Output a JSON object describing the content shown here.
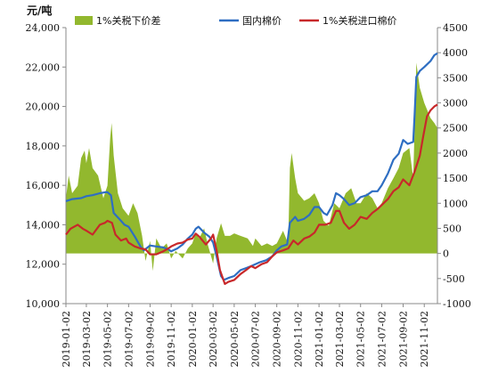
{
  "chart_data": {
    "type": "line",
    "unit_label": "元/吨",
    "legend": [
      {
        "name": "1%关税下价差",
        "color": "#92B82E",
        "kind": "area"
      },
      {
        "name": "国内棉价",
        "color": "#2E6EC2",
        "kind": "line"
      },
      {
        "name": "1%关税进口棉价",
        "color": "#C8282A",
        "kind": "line"
      }
    ],
    "left_axis": {
      "ylim": [
        10000,
        24000
      ],
      "ticks": [
        "10,000",
        "12,000",
        "14,000",
        "16,000",
        "18,000",
        "20,000",
        "22,000",
        "24,000"
      ]
    },
    "right_axis": {
      "ylim": [
        -1000,
        4500
      ],
      "ticks": [
        "-1000",
        "-500",
        "0",
        "500",
        "1000",
        "1500",
        "2000",
        "2500",
        "3000",
        "3500",
        "4000",
        "4500"
      ]
    },
    "x_ticks": [
      "2019-01-02",
      "2019-03-02",
      "2019-05-02",
      "2019-07-02",
      "2019-09-02",
      "2019-11-02",
      "2020-01-02",
      "2020-03-02",
      "2020-05-02",
      "2020-07-02",
      "2020-09-02",
      "2020-11-02",
      "2021-01-02",
      "2021-03-02",
      "2021-05-02",
      "2021-07-02",
      "2021-09-02",
      "2021-11-02"
    ],
    "x_range": [
      "2019-01-02",
      "2021-12-10"
    ],
    "series": [
      {
        "name": "国内棉价",
        "axis": "left",
        "points": [
          [
            "2019-01-02",
            15200
          ],
          [
            "2019-01-20",
            15300
          ],
          [
            "2019-02-15",
            15350
          ],
          [
            "2019-03-02",
            15450
          ],
          [
            "2019-03-20",
            15500
          ],
          [
            "2019-04-10",
            15600
          ],
          [
            "2019-04-25",
            15650
          ],
          [
            "2019-05-02",
            15650
          ],
          [
            "2019-05-12",
            15500
          ],
          [
            "2019-05-20",
            14600
          ],
          [
            "2019-06-05",
            14300
          ],
          [
            "2019-06-20",
            14000
          ],
          [
            "2019-07-02",
            13900
          ],
          [
            "2019-07-20",
            13400
          ],
          [
            "2019-08-05",
            12900
          ],
          [
            "2019-08-15",
            12700
          ],
          [
            "2019-09-02",
            12950
          ],
          [
            "2019-09-20",
            12900
          ],
          [
            "2019-10-10",
            12850
          ],
          [
            "2019-10-25",
            12750
          ],
          [
            "2019-11-02",
            12650
          ],
          [
            "2019-11-20",
            12800
          ],
          [
            "2019-12-05",
            13000
          ],
          [
            "2019-12-20",
            13300
          ],
          [
            "2020-01-02",
            13500
          ],
          [
            "2020-01-12",
            13800
          ],
          [
            "2020-01-20",
            13900
          ],
          [
            "2020-02-05",
            13600
          ],
          [
            "2020-02-20",
            13400
          ],
          [
            "2020-03-02",
            13100
          ],
          [
            "2020-03-12",
            12400
          ],
          [
            "2020-03-25",
            11400
          ],
          [
            "2020-04-02",
            11200
          ],
          [
            "2020-04-15",
            11300
          ],
          [
            "2020-05-02",
            11400
          ],
          [
            "2020-05-20",
            11700
          ],
          [
            "2020-06-05",
            11800
          ],
          [
            "2020-06-20",
            11900
          ],
          [
            "2020-07-02",
            12000
          ],
          [
            "2020-07-15",
            12100
          ],
          [
            "2020-08-02",
            12200
          ],
          [
            "2020-08-20",
            12400
          ],
          [
            "2020-09-02",
            12700
          ],
          [
            "2020-09-15",
            12900
          ],
          [
            "2020-10-02",
            13000
          ],
          [
            "2020-10-10",
            14100
          ],
          [
            "2020-10-25",
            14400
          ],
          [
            "2020-11-02",
            14200
          ],
          [
            "2020-11-20",
            14300
          ],
          [
            "2020-12-05",
            14500
          ],
          [
            "2020-12-20",
            14900
          ],
          [
            "2021-01-02",
            14900
          ],
          [
            "2021-01-15",
            14600
          ],
          [
            "2021-01-25",
            14500
          ],
          [
            "2021-02-10",
            15000
          ],
          [
            "2021-02-20",
            15600
          ],
          [
            "2021-03-02",
            15500
          ],
          [
            "2021-03-15",
            15300
          ],
          [
            "2021-03-30",
            15000
          ],
          [
            "2021-04-15",
            15100
          ],
          [
            "2021-05-02",
            15400
          ],
          [
            "2021-05-20",
            15500
          ],
          [
            "2021-06-05",
            15700
          ],
          [
            "2021-06-20",
            15700
          ],
          [
            "2021-07-02",
            16000
          ],
          [
            "2021-07-20",
            16600
          ],
          [
            "2021-08-05",
            17300
          ],
          [
            "2021-08-20",
            17600
          ],
          [
            "2021-09-02",
            18300
          ],
          [
            "2021-09-15",
            18100
          ],
          [
            "2021-10-01",
            18200
          ],
          [
            "2021-10-05",
            19600
          ],
          [
            "2021-10-10",
            21500
          ],
          [
            "2021-10-20",
            21800
          ],
          [
            "2021-11-02",
            22000
          ],
          [
            "2021-11-20",
            22300
          ],
          [
            "2021-12-01",
            22600
          ],
          [
            "2021-12-10",
            22700
          ]
        ]
      },
      {
        "name": "1%关税进口棉价",
        "axis": "left",
        "points": [
          [
            "2019-01-02",
            13500
          ],
          [
            "2019-01-15",
            13800
          ],
          [
            "2019-02-05",
            14000
          ],
          [
            "2019-02-20",
            13800
          ],
          [
            "2019-03-02",
            13700
          ],
          [
            "2019-03-20",
            13500
          ],
          [
            "2019-04-10",
            14000
          ],
          [
            "2019-04-25",
            14100
          ],
          [
            "2019-05-02",
            14200
          ],
          [
            "2019-05-15",
            14100
          ],
          [
            "2019-05-25",
            13500
          ],
          [
            "2019-06-10",
            13200
          ],
          [
            "2019-06-25",
            13300
          ],
          [
            "2019-07-02",
            13100
          ],
          [
            "2019-07-20",
            12900
          ],
          [
            "2019-08-05",
            12800
          ],
          [
            "2019-08-20",
            12750
          ],
          [
            "2019-09-02",
            12500
          ],
          [
            "2019-09-20",
            12500
          ],
          [
            "2019-10-10",
            12650
          ],
          [
            "2019-10-25",
            12800
          ],
          [
            "2019-11-02",
            12900
          ],
          [
            "2019-11-20",
            13050
          ],
          [
            "2019-12-05",
            13100
          ],
          [
            "2019-12-20",
            13250
          ],
          [
            "2020-01-02",
            13300
          ],
          [
            "2020-01-12",
            13550
          ],
          [
            "2020-01-22",
            13400
          ],
          [
            "2020-02-10",
            13000
          ],
          [
            "2020-02-25",
            13300
          ],
          [
            "2020-03-02",
            13500
          ],
          [
            "2020-03-12",
            12700
          ],
          [
            "2020-03-22",
            11700
          ],
          [
            "2020-04-05",
            11000
          ],
          [
            "2020-04-15",
            11100
          ],
          [
            "2020-05-02",
            11200
          ],
          [
            "2020-05-20",
            11500
          ],
          [
            "2020-06-05",
            11700
          ],
          [
            "2020-06-20",
            11900
          ],
          [
            "2020-07-02",
            11800
          ],
          [
            "2020-07-20",
            12000
          ],
          [
            "2020-08-05",
            12100
          ],
          [
            "2020-08-20",
            12400
          ],
          [
            "2020-09-02",
            12600
          ],
          [
            "2020-09-20",
            12700
          ],
          [
            "2020-10-05",
            12800
          ],
          [
            "2020-10-20",
            13200
          ],
          [
            "2020-11-02",
            13000
          ],
          [
            "2020-11-20",
            13300
          ],
          [
            "2020-12-05",
            13400
          ],
          [
            "2020-12-20",
            13600
          ],
          [
            "2021-01-02",
            14000
          ],
          [
            "2021-01-20",
            14000
          ],
          [
            "2021-02-05",
            14100
          ],
          [
            "2021-02-20",
            14700
          ],
          [
            "2021-03-02",
            14700
          ],
          [
            "2021-03-15",
            14100
          ],
          [
            "2021-03-30",
            13800
          ],
          [
            "2021-04-15",
            14000
          ],
          [
            "2021-05-02",
            14400
          ],
          [
            "2021-05-20",
            14300
          ],
          [
            "2021-06-05",
            14600
          ],
          [
            "2021-06-20",
            14800
          ],
          [
            "2021-07-02",
            15000
          ],
          [
            "2021-07-20",
            15300
          ],
          [
            "2021-08-05",
            15700
          ],
          [
            "2021-08-20",
            15900
          ],
          [
            "2021-09-02",
            16300
          ],
          [
            "2021-09-20",
            16000
          ],
          [
            "2021-10-05",
            16700
          ],
          [
            "2021-10-20",
            17500
          ],
          [
            "2021-10-30",
            18500
          ],
          [
            "2021-11-10",
            19500
          ],
          [
            "2021-11-20",
            19800
          ],
          [
            "2021-12-01",
            20000
          ],
          [
            "2021-12-10",
            20100
          ]
        ]
      },
      {
        "name": "1%关税下价差",
        "axis": "right",
        "points": [
          [
            "2019-01-02",
            1100
          ],
          [
            "2019-01-10",
            1550
          ],
          [
            "2019-01-20",
            1200
          ],
          [
            "2019-02-05",
            1350
          ],
          [
            "2019-02-15",
            1900
          ],
          [
            "2019-02-25",
            2050
          ],
          [
            "2019-03-02",
            1800
          ],
          [
            "2019-03-10",
            2100
          ],
          [
            "2019-03-20",
            1700
          ],
          [
            "2019-04-05",
            1550
          ],
          [
            "2019-04-20",
            1100
          ],
          [
            "2019-05-02",
            1350
          ],
          [
            "2019-05-10",
            2300
          ],
          [
            "2019-05-14",
            2600
          ],
          [
            "2019-05-20",
            1950
          ],
          [
            "2019-06-01",
            1200
          ],
          [
            "2019-06-15",
            900
          ],
          [
            "2019-07-02",
            750
          ],
          [
            "2019-07-15",
            1000
          ],
          [
            "2019-07-28",
            800
          ],
          [
            "2019-08-10",
            350
          ],
          [
            "2019-08-20",
            -150
          ],
          [
            "2019-09-02",
            250
          ],
          [
            "2019-09-10",
            -350
          ],
          [
            "2019-09-20",
            300
          ],
          [
            "2019-10-05",
            100
          ],
          [
            "2019-10-20",
            200
          ],
          [
            "2019-11-02",
            -100
          ],
          [
            "2019-11-15",
            50
          ],
          [
            "2019-12-05",
            -100
          ],
          [
            "2019-12-20",
            100
          ],
          [
            "2020-01-02",
            200
          ],
          [
            "2020-01-12",
            400
          ],
          [
            "2020-01-22",
            300
          ],
          [
            "2020-02-05",
            500
          ],
          [
            "2020-02-15",
            200
          ],
          [
            "2020-03-02",
            -200
          ],
          [
            "2020-03-12",
            300
          ],
          [
            "2020-03-25",
            600
          ],
          [
            "2020-04-05",
            350
          ],
          [
            "2020-04-20",
            350
          ],
          [
            "2020-05-02",
            400
          ],
          [
            "2020-05-20",
            350
          ],
          [
            "2020-06-10",
            300
          ],
          [
            "2020-06-25",
            150
          ],
          [
            "2020-07-02",
            300
          ],
          [
            "2020-07-20",
            150
          ],
          [
            "2020-08-05",
            200
          ],
          [
            "2020-08-20",
            150
          ],
          [
            "2020-09-02",
            200
          ],
          [
            "2020-09-20",
            450
          ],
          [
            "2020-10-05",
            200
          ],
          [
            "2020-10-10",
            1700
          ],
          [
            "2020-10-15",
            2000
          ],
          [
            "2020-10-25",
            1500
          ],
          [
            "2020-11-02",
            1200
          ],
          [
            "2020-11-20",
            1050
          ],
          [
            "2020-12-05",
            1100
          ],
          [
            "2020-12-20",
            1200
          ],
          [
            "2021-01-02",
            1000
          ],
          [
            "2021-01-15",
            650
          ],
          [
            "2021-01-30",
            550
          ],
          [
            "2021-02-15",
            1000
          ],
          [
            "2021-03-02",
            900
          ],
          [
            "2021-03-20",
            1200
          ],
          [
            "2021-04-05",
            1300
          ],
          [
            "2021-04-20",
            1000
          ],
          [
            "2021-05-02",
            1000
          ],
          [
            "2021-05-20",
            1200
          ],
          [
            "2021-06-05",
            1100
          ],
          [
            "2021-06-20",
            900
          ],
          [
            "2021-07-02",
            1000
          ],
          [
            "2021-07-20",
            1300
          ],
          [
            "2021-08-05",
            1500
          ],
          [
            "2021-08-20",
            1700
          ],
          [
            "2021-09-02",
            2000
          ],
          [
            "2021-09-20",
            2100
          ],
          [
            "2021-10-01",
            1500
          ],
          [
            "2021-10-05",
            2500
          ],
          [
            "2021-10-10",
            3800
          ],
          [
            "2021-10-20",
            3300
          ],
          [
            "2021-11-02",
            3000
          ],
          [
            "2021-11-20",
            2700
          ],
          [
            "2021-12-01",
            2600
          ],
          [
            "2021-12-10",
            2500
          ]
        ]
      }
    ]
  }
}
